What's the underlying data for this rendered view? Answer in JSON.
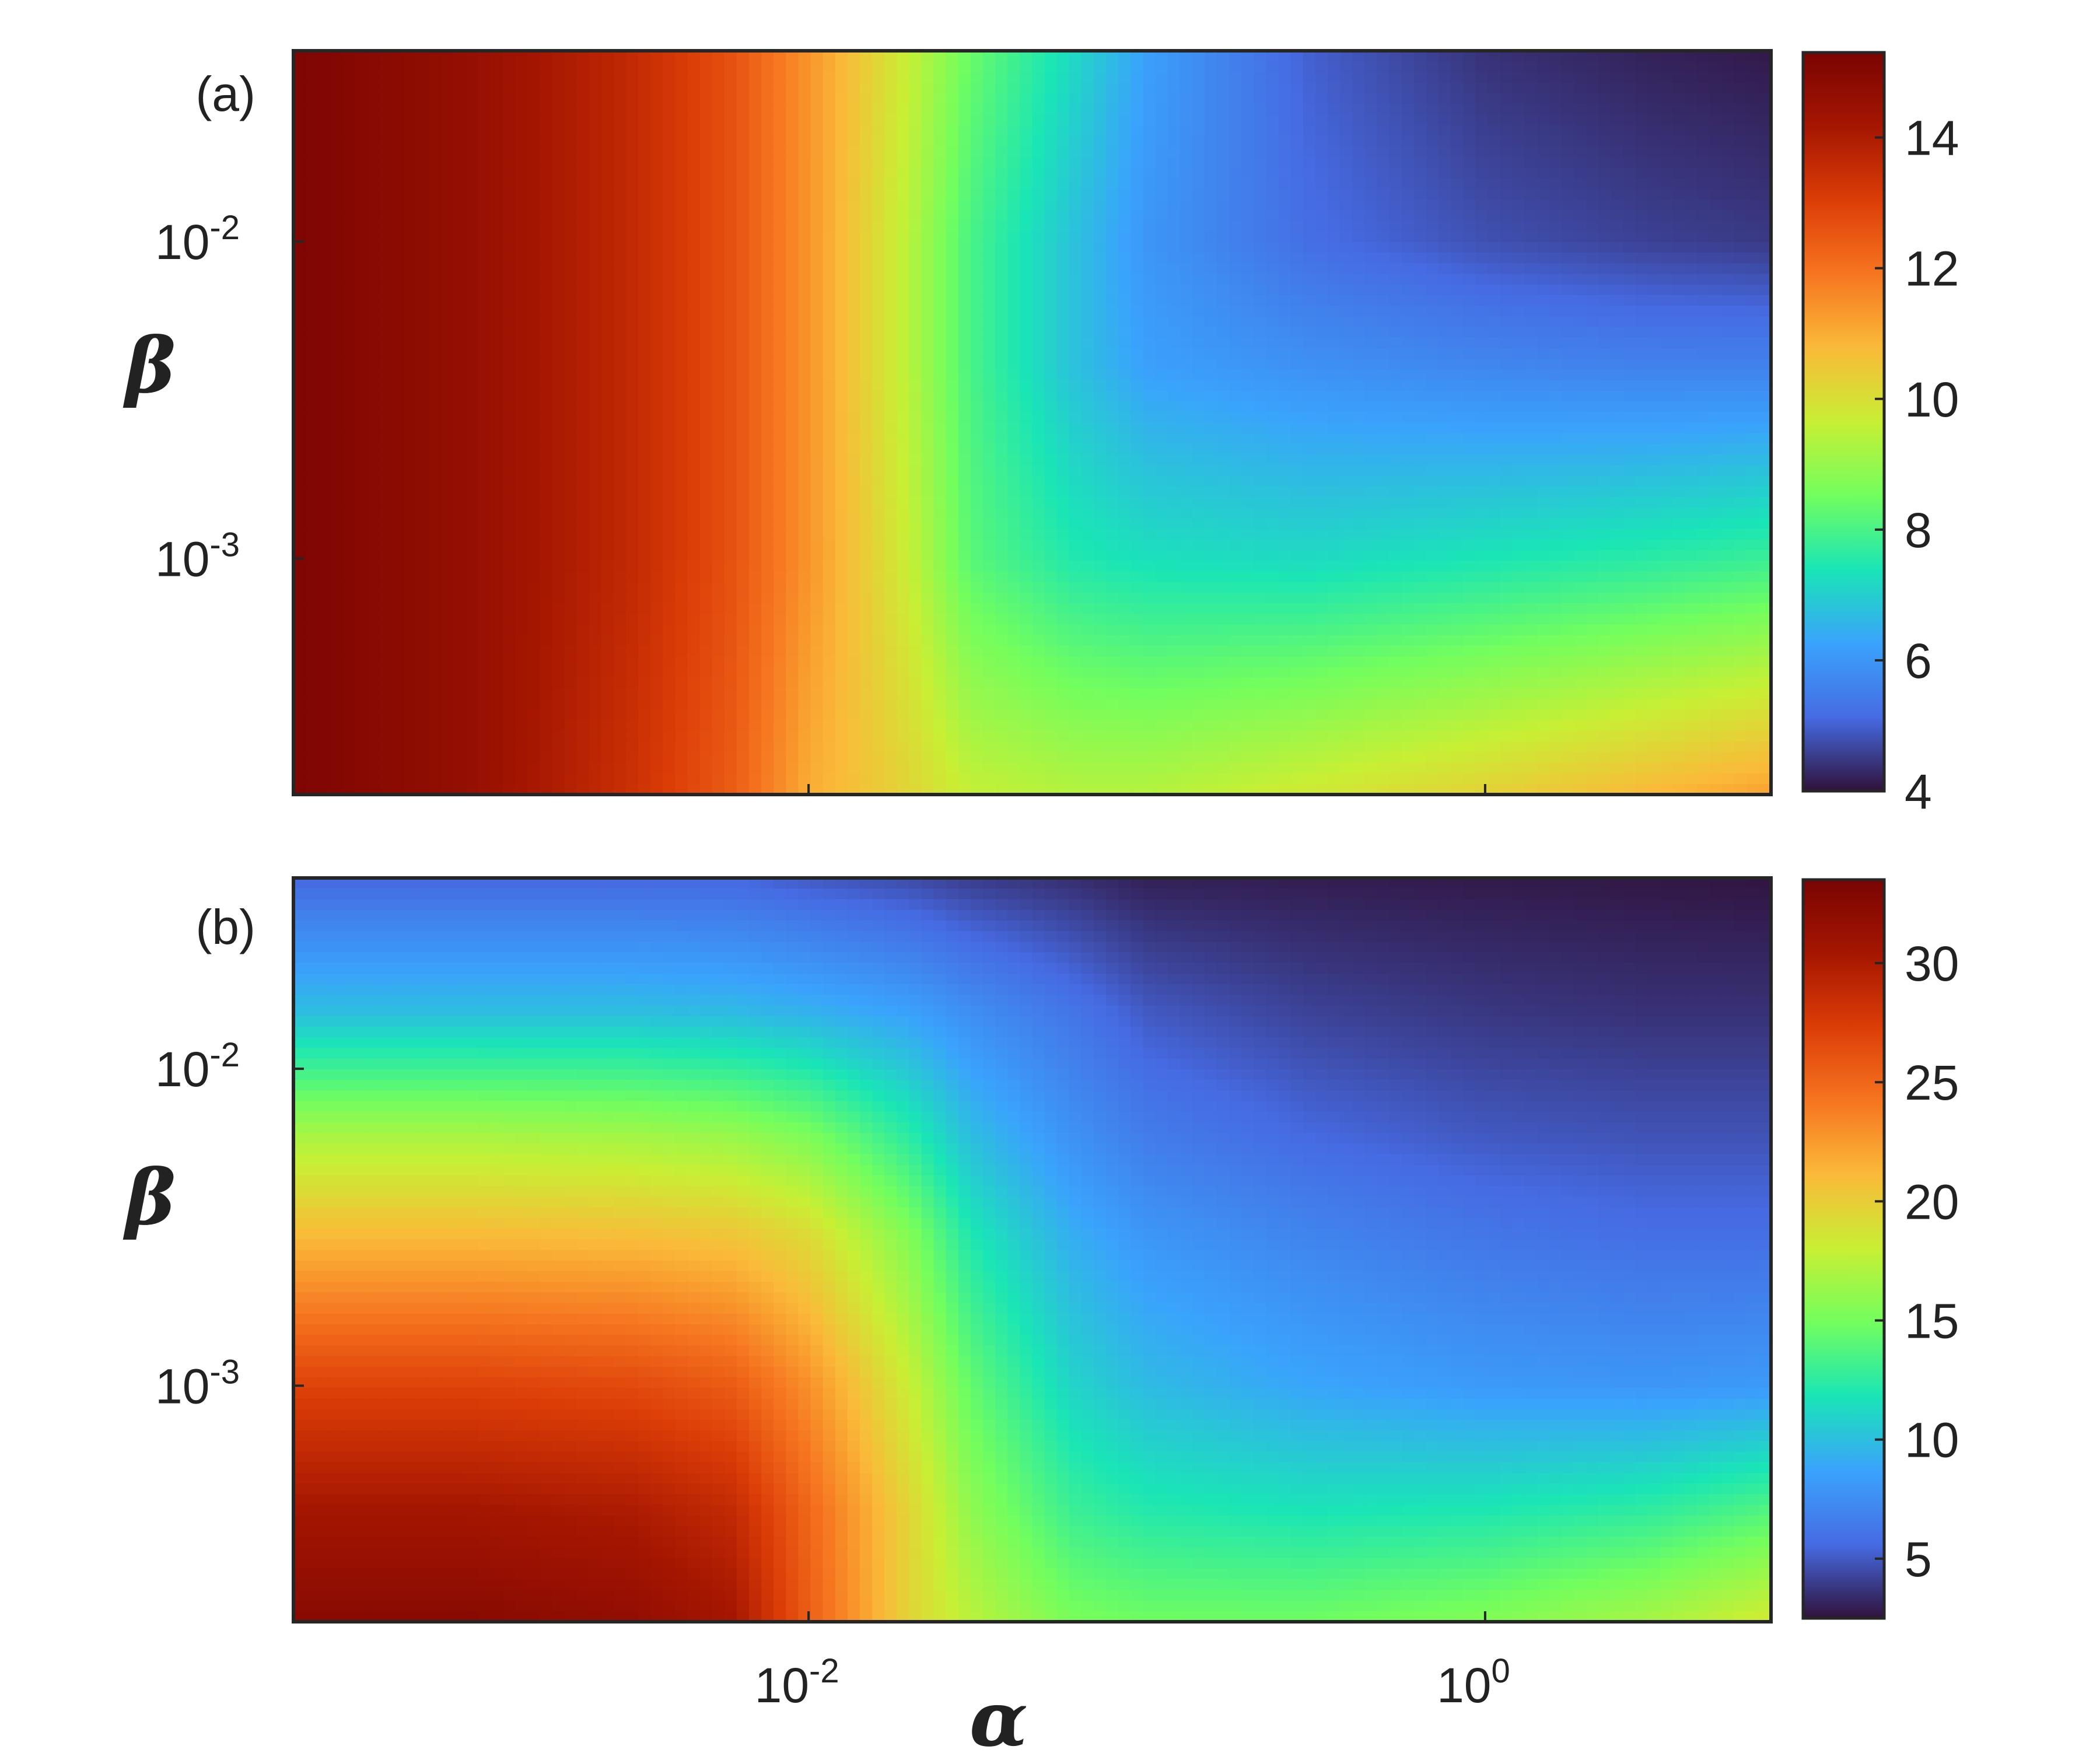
{
  "chart_data": [
    {
      "type": "heatmap",
      "panel_label": "(a)",
      "xlabel": "α",
      "ylabel": "β",
      "x_scale": "log",
      "y_scale": "log",
      "xlim": [
        0.0003,
        7
      ],
      "ylim": [
        0.00018,
        0.04
      ],
      "x_ticks": [
        {
          "base": "10",
          "exp": "-2",
          "value": 0.01
        },
        {
          "base": "10",
          "exp": "0",
          "value": 1
        }
      ],
      "y_ticks": [
        {
          "base": "10",
          "exp": "-2",
          "value": 0.01
        },
        {
          "base": "10",
          "exp": "-3",
          "value": 0.001
        }
      ],
      "colorbar": {
        "min": 4,
        "max": 15.3,
        "ticks": [
          4,
          6,
          8,
          10,
          12,
          14
        ],
        "colormap": "turbo"
      },
      "x_samples": [
        0.0003,
        0.001,
        0.003,
        0.006,
        0.01,
        0.02,
        0.03,
        0.06,
        0.1,
        0.3,
        1,
        3,
        7
      ],
      "y_samples": [
        0.04,
        0.01,
        0.004,
        0.001,
        0.00018
      ],
      "z": [
        [
          15.2,
          14.6,
          13.6,
          12.6,
          11.4,
          9.6,
          8.4,
          7.2,
          6.2,
          5.0,
          4.4,
          4.2,
          4.1
        ],
        [
          15.2,
          14.6,
          13.6,
          12.6,
          11.4,
          9.4,
          8.0,
          6.8,
          6.0,
          5.2,
          4.8,
          4.6,
          4.5
        ],
        [
          15.2,
          14.6,
          13.6,
          12.6,
          11.4,
          9.4,
          8.0,
          6.8,
          6.2,
          5.9,
          5.7,
          5.6,
          5.6
        ],
        [
          15.2,
          14.6,
          13.6,
          12.6,
          11.4,
          9.6,
          8.2,
          7.5,
          7.3,
          7.2,
          7.4,
          7.6,
          7.8
        ],
        [
          15.2,
          14.6,
          13.4,
          12.4,
          11.0,
          10.2,
          9.6,
          9.4,
          9.4,
          9.8,
          10.3,
          10.8,
          11.2
        ]
      ]
    },
    {
      "type": "heatmap",
      "panel_label": "(b)",
      "xlabel": "α",
      "ylabel": "β",
      "x_scale": "log",
      "y_scale": "log",
      "xlim": [
        0.0003,
        7
      ],
      "ylim": [
        0.00018,
        0.04
      ],
      "x_ticks": [
        {
          "base": "10",
          "exp": "-2",
          "value": 0.01
        },
        {
          "base": "10",
          "exp": "0",
          "value": 1
        }
      ],
      "y_ticks": [
        {
          "base": "10",
          "exp": "-2",
          "value": 0.01
        },
        {
          "base": "10",
          "exp": "-3",
          "value": 0.001
        }
      ],
      "colorbar": {
        "min": 2.5,
        "max": 33.5,
        "ticks": [
          5,
          10,
          15,
          20,
          25,
          30
        ],
        "colormap": "turbo"
      },
      "x_samples": [
        0.0003,
        0.001,
        0.003,
        0.006,
        0.01,
        0.02,
        0.03,
        0.06,
        0.1,
        0.3,
        1,
        3,
        7
      ],
      "y_samples": [
        0.04,
        0.015,
        0.006,
        0.003,
        0.001,
        0.0004,
        0.00018
      ],
      "z": [
        [
          5.5,
          5.5,
          5.5,
          5.5,
          5.0,
          4.5,
          4.0,
          3.5,
          3.0,
          2.9,
          2.8,
          2.7,
          2.6
        ],
        [
          10.0,
          10.0,
          10.0,
          9.8,
          9.4,
          8.6,
          7.6,
          6.2,
          5.0,
          4.2,
          3.8,
          3.6,
          3.6
        ],
        [
          17.0,
          17.0,
          16.8,
          16.4,
          15.4,
          12.5,
          10.0,
          7.8,
          6.6,
          5.6,
          5.0,
          4.8,
          4.8
        ],
        [
          21.0,
          21.0,
          20.8,
          20.4,
          19.2,
          15.4,
          12.0,
          9.2,
          8.0,
          7.0,
          6.2,
          5.8,
          5.8
        ],
        [
          27.0,
          27.0,
          26.6,
          25.6,
          23.0,
          18.0,
          14.4,
          11.0,
          9.8,
          8.8,
          8.2,
          8.0,
          8.2
        ],
        [
          30.5,
          30.5,
          30.0,
          28.8,
          25.0,
          19.5,
          16.0,
          13.0,
          12.2,
          11.8,
          12.0,
          12.6,
          13.8
        ],
        [
          32.5,
          32.5,
          31.8,
          30.5,
          25.5,
          19.5,
          17.5,
          15.2,
          14.8,
          14.8,
          15.5,
          16.8,
          18.5
        ]
      ]
    }
  ]
}
